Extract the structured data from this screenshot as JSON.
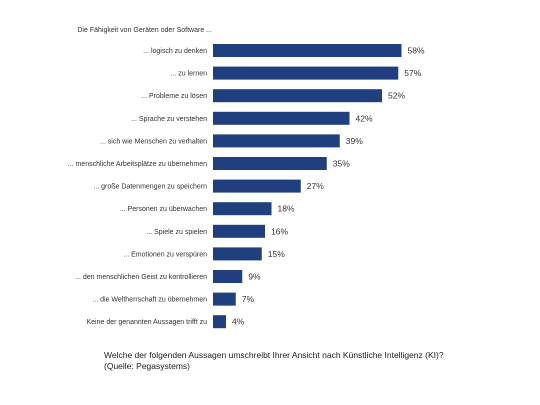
{
  "chart_data": {
    "type": "bar",
    "orientation": "horizontal",
    "intro": "Die Fähigkeit von Geräten oder Software ...",
    "categories": [
      "... logisch zu denken",
      "... zu lernen",
      "... Probleme zu lösen",
      "... Sprache zu verstehen",
      "... sich wie Menschen zu verhalten",
      "... menschliche Arbeitsplätze zu übernehmen",
      "... große Datenmengen zu speichern",
      "... Personen zu überwachen",
      "... Spiele zu spielen",
      "... Emotionen zu verspüren",
      "... den menschlichen Geist zu kontrollieren",
      "... die Weltherrschaft zu übernehmen",
      "Keine der genannten Aussagen trifft zu"
    ],
    "values": [
      58,
      57,
      52,
      42,
      39,
      35,
      27,
      18,
      16,
      15,
      9,
      7,
      4
    ],
    "value_suffix": "%",
    "xlim": [
      0,
      60
    ],
    "grid": false,
    "legend": "none",
    "bar_color": "#1f3f7f"
  },
  "caption": {
    "line1": "Welche der folgenden Aussagen umschreibt Ihrer Ansicht nach Künstliche Intelligenz (KI)?",
    "line2": "(Quelle: Pegasystems)"
  }
}
